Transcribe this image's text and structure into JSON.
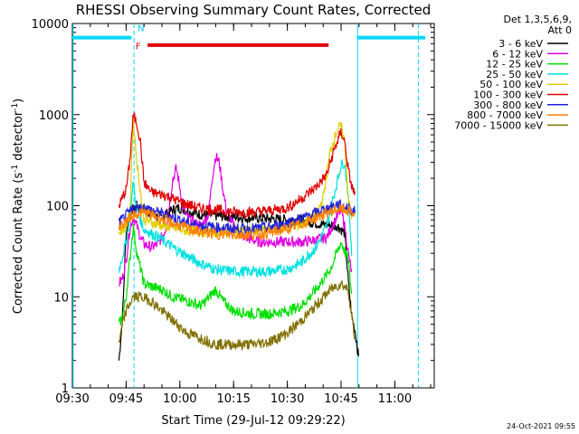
{
  "chart_data": {
    "type": "line",
    "title": "RHESSI Observing Summary Count Rates, Corrected",
    "xlabel": "Start Time (29-Jul-12 09:29:22)",
    "ylabel": "Corrected Count Rate (s⁻¹ detector⁻¹)",
    "ylabel_main": "Corrected Count Rate (s",
    "ylabel_sup1": "-1",
    "ylabel_mid": " detector",
    "ylabel_sup2": "-1",
    "ylabel_end": ")",
    "yscale": "log",
    "ylim": [
      1,
      10000
    ],
    "xlim_minutes": [
      0,
      101
    ],
    "xticks": [
      {
        "label": "09:30",
        "min": 0
      },
      {
        "label": "09:45",
        "min": 15
      },
      {
        "label": "10:00",
        "min": 30
      },
      {
        "label": "10:15",
        "min": 45
      },
      {
        "label": "10:30",
        "min": 60
      },
      {
        "label": "10:45",
        "min": 75
      },
      {
        "label": "11:00",
        "min": 90
      }
    ],
    "yticks": [
      {
        "label": "1",
        "value": 1
      },
      {
        "label": "10",
        "value": 10
      },
      {
        "label": "100",
        "value": 100
      },
      {
        "label": "1000",
        "value": 1000
      },
      {
        "label": "10000",
        "value": 10000
      }
    ],
    "legend_header": [
      "Det 1,3,5,6,9,",
      "Att 0"
    ],
    "footer": "24-Oct-2021 09:55",
    "annotations": [
      {
        "text": "N",
        "color": "#00c8ff"
      },
      {
        "text": "F",
        "color": "#e00000"
      }
    ],
    "night_bars": [
      {
        "x0": 0,
        "x1": 16.5,
        "y": 7000
      },
      {
        "x0": 79.5,
        "x1": 98.5,
        "y": 7000
      }
    ],
    "flare_bar": {
      "x0": 21,
      "x1": 71.5,
      "y": 5800
    },
    "night_lines": [
      {
        "x": 0.2,
        "style": "solid"
      },
      {
        "x": 17.2,
        "style": "dashed"
      },
      {
        "x": 79.6,
        "style": "solid"
      },
      {
        "x": 96.6,
        "style": "dashed"
      }
    ],
    "series": [
      {
        "name": "3 - 6 keV",
        "color": "#000000",
        "points": [
          [
            13,
            2
          ],
          [
            14,
            6
          ],
          [
            15,
            50
          ],
          [
            16,
            85
          ],
          [
            18,
            100
          ],
          [
            20,
            90
          ],
          [
            22,
            85
          ],
          [
            24,
            75
          ],
          [
            26,
            80
          ],
          [
            28,
            90
          ],
          [
            30,
            95
          ],
          [
            33,
            85
          ],
          [
            36,
            80
          ],
          [
            40,
            78
          ],
          [
            45,
            75
          ],
          [
            50,
            74
          ],
          [
            55,
            72
          ],
          [
            60,
            70
          ],
          [
            65,
            68
          ],
          [
            70,
            62
          ],
          [
            74,
            60
          ],
          [
            76,
            50
          ],
          [
            77,
            15
          ],
          [
            78,
            6
          ],
          [
            79,
            4
          ],
          [
            80,
            2
          ]
        ]
      },
      {
        "name": "6 - 12 keV",
        "color": "#e000e0",
        "points": [
          [
            13,
            14
          ],
          [
            14,
            16
          ],
          [
            15,
            25
          ],
          [
            16,
            55
          ],
          [
            17,
            75
          ],
          [
            18,
            60
          ],
          [
            19,
            45
          ],
          [
            20,
            38
          ],
          [
            22,
            35
          ],
          [
            24,
            38
          ],
          [
            26,
            55
          ],
          [
            27,
            100
          ],
          [
            28,
            190
          ],
          [
            29,
            260
          ],
          [
            30,
            160
          ],
          [
            31,
            90
          ],
          [
            32,
            75
          ],
          [
            34,
            65
          ],
          [
            36,
            60
          ],
          [
            38,
            80
          ],
          [
            39,
            200
          ],
          [
            40,
            350
          ],
          [
            41,
            300
          ],
          [
            42,
            150
          ],
          [
            43,
            90
          ],
          [
            45,
            60
          ],
          [
            48,
            45
          ],
          [
            52,
            40
          ],
          [
            56,
            40
          ],
          [
            60,
            40
          ],
          [
            64,
            40
          ],
          [
            68,
            42
          ],
          [
            71,
            45
          ],
          [
            73,
            65
          ],
          [
            75,
            90
          ],
          [
            76,
            60
          ],
          [
            77,
            30
          ],
          [
            78,
            18
          ]
        ]
      },
      {
        "name": "12 - 25 keV",
        "color": "#00e000",
        "points": [
          [
            13,
            5
          ],
          [
            14,
            6
          ],
          [
            15,
            10
          ],
          [
            16,
            25
          ],
          [
            17,
            60
          ],
          [
            18,
            30
          ],
          [
            20,
            14
          ],
          [
            22,
            13
          ],
          [
            25,
            12
          ],
          [
            28,
            10
          ],
          [
            32,
            9
          ],
          [
            36,
            8
          ],
          [
            40,
            12
          ],
          [
            42,
            9
          ],
          [
            45,
            7
          ],
          [
            50,
            6.5
          ],
          [
            55,
            6.5
          ],
          [
            60,
            7
          ],
          [
            64,
            8
          ],
          [
            68,
            12
          ],
          [
            72,
            20
          ],
          [
            75,
            40
          ],
          [
            77,
            25
          ],
          [
            78,
            10
          ]
        ]
      },
      {
        "name": "25 - 50 keV",
        "color": "#00e0e0",
        "points": [
          [
            13,
            20
          ],
          [
            14,
            28
          ],
          [
            15,
            40
          ],
          [
            16,
            70
          ],
          [
            17,
            180
          ],
          [
            18,
            90
          ],
          [
            20,
            55
          ],
          [
            24,
            45
          ],
          [
            28,
            35
          ],
          [
            32,
            28
          ],
          [
            36,
            23
          ],
          [
            40,
            20
          ],
          [
            45,
            19
          ],
          [
            50,
            19
          ],
          [
            55,
            19
          ],
          [
            60,
            20
          ],
          [
            64,
            24
          ],
          [
            68,
            35
          ],
          [
            71,
            60
          ],
          [
            73,
            130
          ],
          [
            75,
            280
          ],
          [
            76,
            300
          ],
          [
            77,
            120
          ],
          [
            78,
            30
          ]
        ]
      },
      {
        "name": "50 - 100 keV",
        "color": "#e0d000",
        "points": [
          [
            13,
            50
          ],
          [
            15,
            60
          ],
          [
            16,
            80
          ],
          [
            17,
            900
          ],
          [
            18,
            300
          ],
          [
            20,
            70
          ],
          [
            24,
            62
          ],
          [
            28,
            57
          ],
          [
            32,
            53
          ],
          [
            36,
            52
          ],
          [
            40,
            52
          ],
          [
            45,
            53
          ],
          [
            50,
            53
          ],
          [
            55,
            55
          ],
          [
            60,
            58
          ],
          [
            64,
            62
          ],
          [
            68,
            80
          ],
          [
            70,
            120
          ],
          [
            72,
            400
          ],
          [
            74,
            700
          ],
          [
            75,
            750
          ],
          [
            76,
            500
          ],
          [
            77,
            120
          ],
          [
            78,
            70
          ]
        ]
      },
      {
        "name": "100 - 300 keV",
        "color": "#e00000",
        "points": [
          [
            13,
            100
          ],
          [
            15,
            150
          ],
          [
            16,
            300
          ],
          [
            17,
            1000
          ],
          [
            18,
            800
          ],
          [
            19,
            500
          ],
          [
            20,
            180
          ],
          [
            22,
            140
          ],
          [
            26,
            130
          ],
          [
            30,
            110
          ],
          [
            35,
            95
          ],
          [
            40,
            90
          ],
          [
            45,
            85
          ],
          [
            50,
            85
          ],
          [
            55,
            88
          ],
          [
            60,
            95
          ],
          [
            64,
            120
          ],
          [
            68,
            160
          ],
          [
            71,
            220
          ],
          [
            73,
            400
          ],
          [
            75,
            650
          ],
          [
            76,
            500
          ],
          [
            77,
            250
          ],
          [
            78,
            160
          ],
          [
            79,
            130
          ]
        ]
      },
      {
        "name": "300 - 800 keV",
        "color": "#2020e0",
        "points": [
          [
            13,
            65
          ],
          [
            15,
            78
          ],
          [
            17,
            92
          ],
          [
            20,
            96
          ],
          [
            24,
            84
          ],
          [
            28,
            74
          ],
          [
            32,
            65
          ],
          [
            36,
            60
          ],
          [
            40,
            58
          ],
          [
            45,
            56
          ],
          [
            50,
            56
          ],
          [
            55,
            58
          ],
          [
            60,
            65
          ],
          [
            65,
            75
          ],
          [
            70,
            90
          ],
          [
            74,
            103
          ],
          [
            77,
            95
          ],
          [
            79,
            85
          ]
        ]
      },
      {
        "name": "800 - 7000 keV",
        "color": "#ff8000",
        "points": [
          [
            13,
            58
          ],
          [
            15,
            68
          ],
          [
            17,
            80
          ],
          [
            20,
            85
          ],
          [
            24,
            74
          ],
          [
            28,
            64
          ],
          [
            32,
            56
          ],
          [
            36,
            51
          ],
          [
            40,
            49
          ],
          [
            45,
            48
          ],
          [
            50,
            48
          ],
          [
            55,
            50
          ],
          [
            60,
            56
          ],
          [
            65,
            65
          ],
          [
            70,
            80
          ],
          [
            74,
            92
          ],
          [
            77,
            88
          ],
          [
            79,
            80
          ]
        ]
      },
      {
        "name": "7000 - 15000 keV",
        "color": "#807000",
        "points": [
          [
            13,
            3
          ],
          [
            14,
            5
          ],
          [
            15,
            7
          ],
          [
            17,
            10
          ],
          [
            19,
            10
          ],
          [
            22,
            9
          ],
          [
            25,
            7
          ],
          [
            28,
            5.5
          ],
          [
            32,
            4
          ],
          [
            36,
            3.5
          ],
          [
            40,
            3
          ],
          [
            45,
            3
          ],
          [
            50,
            3
          ],
          [
            55,
            3.2
          ],
          [
            60,
            4
          ],
          [
            64,
            5.5
          ],
          [
            68,
            8
          ],
          [
            72,
            12
          ],
          [
            75,
            14
          ],
          [
            77,
            12
          ],
          [
            78,
            6
          ],
          [
            79,
            3
          ]
        ]
      }
    ]
  }
}
